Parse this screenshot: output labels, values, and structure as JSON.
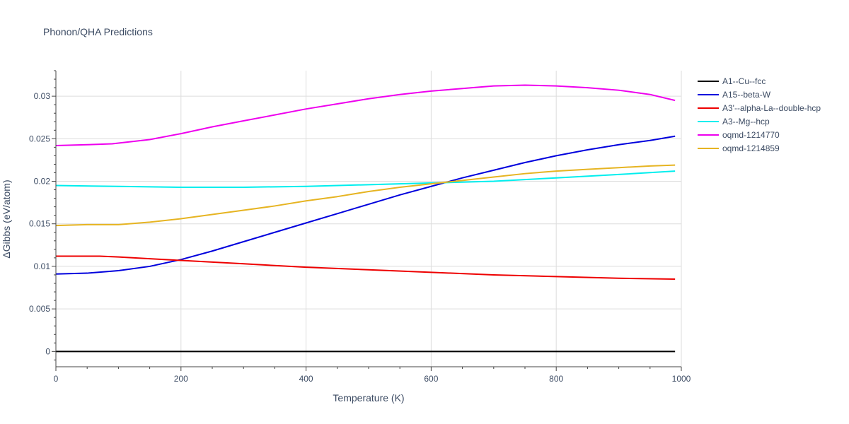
{
  "chart_data": {
    "type": "line",
    "title": "Phonon/QHA Predictions",
    "xlabel": "Temperature (K)",
    "ylabel": "ΔGibbs (eV/atom)",
    "xlim": [
      0,
      1000
    ],
    "ylim": [
      -0.0018,
      0.033
    ],
    "x_ticks": [
      0,
      200,
      400,
      600,
      800,
      1000
    ],
    "y_ticks": [
      0,
      0.005,
      0.01,
      0.015,
      0.02,
      0.025,
      0.03
    ],
    "y_tick_labels": [
      "0",
      "0.005",
      "0.01",
      "0.015",
      "0.02",
      "0.025",
      "0.03"
    ],
    "grid": true,
    "legend_position": "right",
    "series": [
      {
        "name": "A1--Cu--fcc",
        "color": "#000000",
        "points": [
          [
            0,
            0
          ],
          [
            990,
            0
          ]
        ]
      },
      {
        "name": "A15--beta-W",
        "color": "#0000dd",
        "points": [
          [
            0,
            0.0091
          ],
          [
            50,
            0.0092
          ],
          [
            100,
            0.0095
          ],
          [
            150,
            0.01
          ],
          [
            200,
            0.0108
          ],
          [
            250,
            0.0118
          ],
          [
            300,
            0.0129
          ],
          [
            350,
            0.014
          ],
          [
            400,
            0.0151
          ],
          [
            450,
            0.0162
          ],
          [
            500,
            0.0173
          ],
          [
            550,
            0.0184
          ],
          [
            600,
            0.0194
          ],
          [
            650,
            0.0204
          ],
          [
            700,
            0.0213
          ],
          [
            750,
            0.0222
          ],
          [
            800,
            0.023
          ],
          [
            850,
            0.0237
          ],
          [
            900,
            0.0243
          ],
          [
            950,
            0.0248
          ],
          [
            990,
            0.0253
          ]
        ]
      },
      {
        "name": "A3'--alpha-La--double-hcp",
        "color": "#ee0000",
        "points": [
          [
            0,
            0.0112
          ],
          [
            70,
            0.0112
          ],
          [
            100,
            0.0111
          ],
          [
            150,
            0.0109
          ],
          [
            200,
            0.0107
          ],
          [
            300,
            0.0103
          ],
          [
            400,
            0.0099
          ],
          [
            500,
            0.0096
          ],
          [
            600,
            0.0093
          ],
          [
            700,
            0.009
          ],
          [
            800,
            0.0088
          ],
          [
            900,
            0.0086
          ],
          [
            990,
            0.0085
          ]
        ]
      },
      {
        "name": "A3--Mg--hcp",
        "color": "#00eeee",
        "points": [
          [
            0,
            0.0195
          ],
          [
            100,
            0.0194
          ],
          [
            200,
            0.0193
          ],
          [
            250,
            0.0193
          ],
          [
            300,
            0.0193
          ],
          [
            400,
            0.0194
          ],
          [
            500,
            0.0196
          ],
          [
            600,
            0.0198
          ],
          [
            700,
            0.02
          ],
          [
            800,
            0.0204
          ],
          [
            900,
            0.0208
          ],
          [
            990,
            0.0212
          ]
        ]
      },
      {
        "name": "oqmd-1214770",
        "color": "#ee00ee",
        "points": [
          [
            0,
            0.0242
          ],
          [
            50,
            0.0243
          ],
          [
            90,
            0.0244
          ],
          [
            150,
            0.0249
          ],
          [
            200,
            0.0256
          ],
          [
            250,
            0.0264
          ],
          [
            300,
            0.0271
          ],
          [
            350,
            0.0278
          ],
          [
            400,
            0.0285
          ],
          [
            450,
            0.0291
          ],
          [
            500,
            0.0297
          ],
          [
            550,
            0.0302
          ],
          [
            600,
            0.0306
          ],
          [
            650,
            0.0309
          ],
          [
            700,
            0.0312
          ],
          [
            750,
            0.0313
          ],
          [
            800,
            0.0312
          ],
          [
            850,
            0.031
          ],
          [
            900,
            0.0307
          ],
          [
            950,
            0.0302
          ],
          [
            990,
            0.0295
          ]
        ]
      },
      {
        "name": "oqmd-1214859",
        "color": "#e6b422",
        "points": [
          [
            0,
            0.0148
          ],
          [
            50,
            0.0149
          ],
          [
            100,
            0.0149
          ],
          [
            150,
            0.0152
          ],
          [
            200,
            0.0156
          ],
          [
            250,
            0.0161
          ],
          [
            300,
            0.0166
          ],
          [
            350,
            0.0171
          ],
          [
            400,
            0.0177
          ],
          [
            450,
            0.0182
          ],
          [
            500,
            0.0188
          ],
          [
            550,
            0.0193
          ],
          [
            600,
            0.0197
          ],
          [
            650,
            0.0201
          ],
          [
            700,
            0.0205
          ],
          [
            750,
            0.0209
          ],
          [
            800,
            0.0212
          ],
          [
            850,
            0.0214
          ],
          [
            900,
            0.0216
          ],
          [
            950,
            0.0218
          ],
          [
            990,
            0.0219
          ]
        ]
      }
    ]
  }
}
